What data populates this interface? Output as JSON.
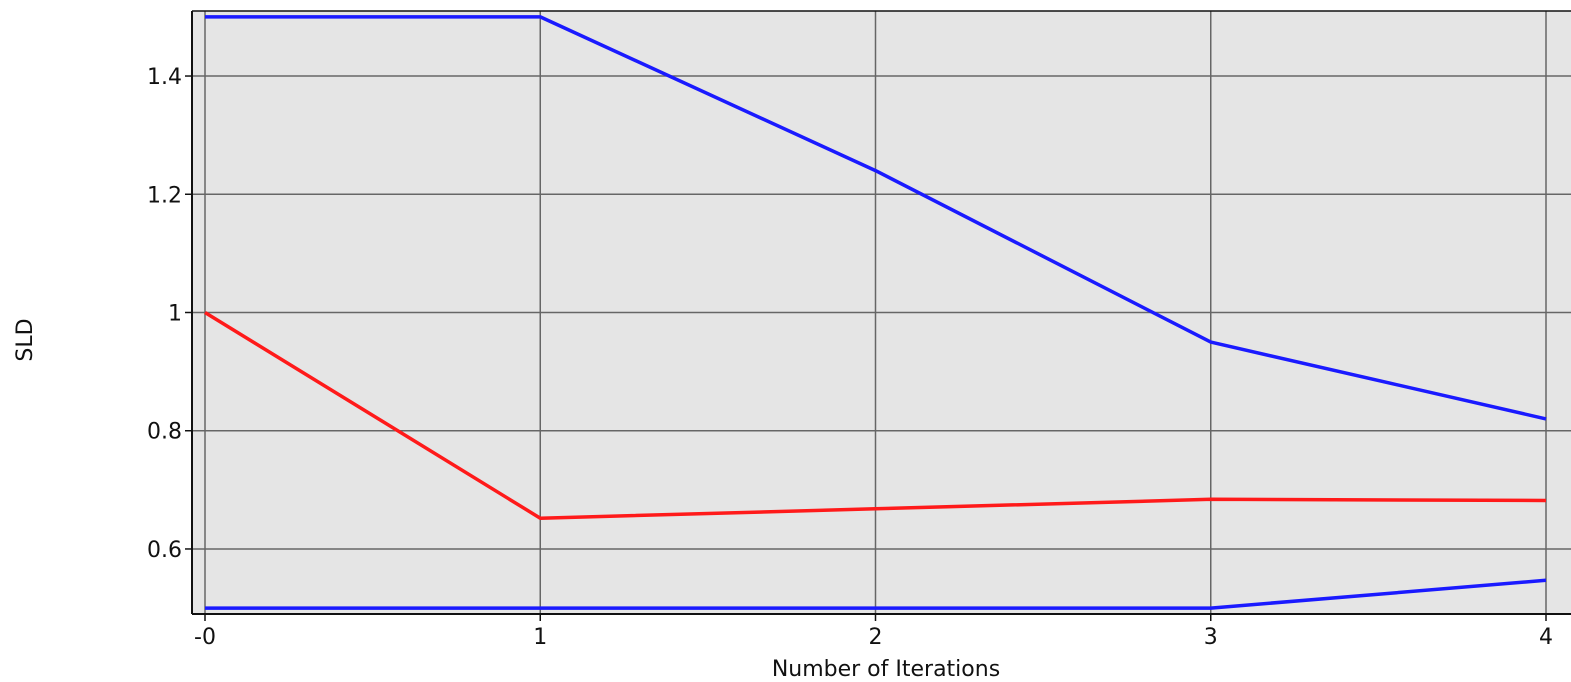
{
  "chart_data": {
    "type": "line",
    "title": "",
    "xlabel": "Number of Iterations",
    "ylabel": "SLD",
    "xlim": [
      0,
      4
    ],
    "ylim": [
      0.49,
      1.51
    ],
    "x_ticks": [
      0,
      1,
      2,
      3,
      4
    ],
    "x_tick_labels": [
      "-0",
      "1",
      "2",
      "3",
      "4"
    ],
    "y_ticks": [
      0.6,
      0.8,
      1.0,
      1.2,
      1.4
    ],
    "y_tick_labels": [
      "0.6",
      "0.8",
      "1",
      "1.2",
      "1.4"
    ],
    "grid": true,
    "plot_background": "#e5e5e5",
    "series": [
      {
        "x": [
          0,
          1,
          2,
          3,
          4
        ],
        "y": [
          1.5,
          1.5,
          1.24,
          0.95,
          0.82
        ],
        "color": "#1a1aff"
      },
      {
        "x": [
          0,
          1,
          2,
          3,
          4
        ],
        "y": [
          1.0,
          0.652,
          0.668,
          0.684,
          0.682
        ],
        "color": "#ff1a1a"
      },
      {
        "x": [
          0,
          1,
          2,
          3,
          4
        ],
        "y": [
          0.5,
          0.5,
          0.5,
          0.5,
          0.547
        ],
        "color": "#1a1aff"
      }
    ]
  }
}
